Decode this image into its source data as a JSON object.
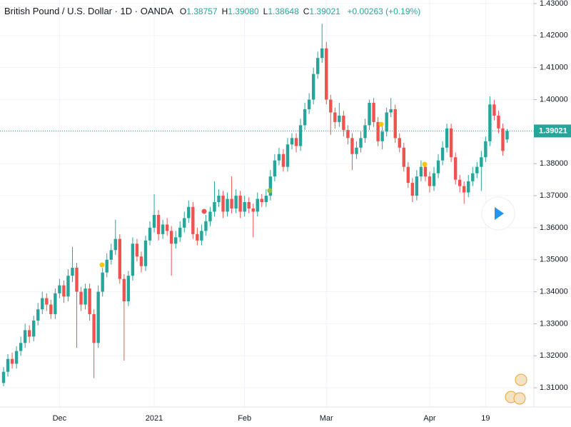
{
  "chart_data": {
    "type": "candlestick",
    "header": {
      "title": "British Pound / U.S. Dollar · 1D · OANDA",
      "ohlc": [
        {
          "key": "O",
          "value": "1.38757"
        },
        {
          "key": "H",
          "value": "1.39080"
        },
        {
          "key": "L",
          "value": "1.38648"
        },
        {
          "key": "C",
          "value": "1.39021"
        }
      ],
      "change": "+0.00263 (+0.19%)"
    },
    "categories": [
      null,
      null,
      null,
      null,
      null,
      null,
      null,
      null,
      null,
      null,
      null,
      null,
      null,
      "Dec",
      null,
      null,
      null,
      null,
      null,
      null,
      null,
      null,
      null,
      null,
      null,
      null,
      null,
      null,
      null,
      null,
      null,
      null,
      null,
      null,
      null,
      "2021",
      null,
      null,
      null,
      null,
      null,
      null,
      null,
      null,
      null,
      null,
      null,
      null,
      null,
      null,
      null,
      null,
      null,
      null,
      null,
      null,
      "Feb",
      null,
      null,
      null,
      null,
      null,
      null,
      null,
      null,
      null,
      null,
      null,
      null,
      null,
      null,
      null,
      null,
      null,
      null,
      "Mar",
      null,
      null,
      null,
      null,
      null,
      null,
      null,
      null,
      null,
      null,
      null,
      null,
      null,
      null,
      null,
      null,
      null,
      null,
      null,
      null,
      null,
      null,
      null,
      "Apr",
      null,
      null,
      null,
      null,
      null,
      null,
      null,
      null,
      null,
      null,
      null,
      null,
      "19",
      null,
      null,
      null,
      null,
      null
    ],
    "open": [
      1.3115,
      1.315,
      1.319,
      1.3175,
      1.3215,
      1.324,
      1.328,
      1.326,
      1.331,
      1.3345,
      1.338,
      1.336,
      1.333,
      1.3395,
      1.342,
      1.3385,
      1.345,
      1.3475,
      1.34,
      1.336,
      1.341,
      1.333,
      1.324,
      1.34,
      1.346,
      1.35,
      1.353,
      1.3565,
      1.344,
      1.337,
      1.345,
      1.355,
      1.351,
      1.348,
      1.356,
      1.36,
      1.364,
      1.358,
      1.361,
      1.359,
      1.355,
      1.357,
      1.36,
      1.363,
      1.3665,
      1.358,
      1.356,
      1.359,
      1.362,
      1.365,
      1.368,
      1.37,
      1.365,
      1.369,
      1.366,
      1.37,
      1.365,
      1.368,
      1.366,
      1.365,
      1.369,
      1.368,
      1.37,
      1.376,
      1.381,
      1.383,
      1.379,
      1.386,
      1.388,
      1.3855,
      1.392,
      1.397,
      1.4,
      1.408,
      1.413,
      1.416,
      1.4,
      1.396,
      1.393,
      1.395,
      1.3905,
      1.388,
      1.383,
      1.385,
      1.388,
      1.392,
      1.399,
      1.393,
      1.387,
      1.39,
      1.396,
      1.397,
      1.388,
      1.385,
      1.379,
      1.374,
      1.37,
      1.376,
      1.379,
      1.376,
      1.373,
      1.377,
      1.381,
      1.385,
      1.391,
      1.382,
      1.375,
      1.373,
      1.371,
      1.3745,
      1.377,
      1.379,
      1.382,
      1.387,
      1.3985,
      1.395,
      1.391,
      1.38757
    ],
    "high": [
      1.3165,
      1.3205,
      1.321,
      1.323,
      1.326,
      1.33,
      1.3295,
      1.3325,
      1.3365,
      1.34,
      1.3395,
      1.3375,
      1.341,
      1.344,
      1.3435,
      1.347,
      1.354,
      1.349,
      1.3415,
      1.3425,
      1.3425,
      1.3345,
      1.342,
      1.3475,
      1.352,
      1.355,
      1.3625,
      1.358,
      1.3455,
      1.3465,
      1.357,
      1.3565,
      1.3525,
      1.3575,
      1.362,
      1.3705,
      1.3655,
      1.3625,
      1.363,
      1.3605,
      1.359,
      1.362,
      1.365,
      1.3685,
      1.368,
      1.36,
      1.361,
      1.364,
      1.3665,
      1.3745,
      1.372,
      1.3715,
      1.371,
      1.376,
      1.372,
      1.3715,
      1.37,
      1.3695,
      1.3675,
      1.371,
      1.3705,
      1.372,
      1.378,
      1.383,
      1.385,
      1.3845,
      1.388,
      1.3895,
      1.3895,
      1.394,
      1.399,
      1.402,
      1.41,
      1.415,
      1.4237,
      1.418,
      1.4015,
      1.3975,
      1.399,
      1.3965,
      1.392,
      1.3895,
      1.387,
      1.39,
      1.394,
      1.4,
      1.4005,
      1.3945,
      1.392,
      1.3975,
      1.4005,
      1.3985,
      1.3895,
      1.3865,
      1.3805,
      1.3755,
      1.378,
      1.381,
      1.3805,
      1.3775,
      1.379,
      1.383,
      1.387,
      1.3925,
      1.3925,
      1.3835,
      1.3765,
      1.3745,
      1.3765,
      1.379,
      1.3805,
      1.384,
      1.3885,
      1.401,
      1.4,
      1.3965,
      1.3925,
      1.3908
    ],
    "low": [
      1.3105,
      1.3135,
      1.316,
      1.316,
      1.32,
      1.3225,
      1.324,
      1.3245,
      1.3295,
      1.333,
      1.334,
      1.3315,
      1.3315,
      1.338,
      1.3365,
      1.337,
      1.343,
      1.3225,
      1.334,
      1.3345,
      1.331,
      1.313,
      1.3225,
      1.3385,
      1.3445,
      1.3485,
      1.3515,
      1.3425,
      1.3185,
      1.3355,
      1.3435,
      1.3495,
      1.346,
      1.3465,
      1.3545,
      1.3585,
      1.356,
      1.3565,
      1.3575,
      1.345,
      1.3535,
      1.3555,
      1.3585,
      1.3615,
      1.3565,
      1.3545,
      1.3545,
      1.3575,
      1.3605,
      1.3635,
      1.3665,
      1.363,
      1.3635,
      1.3645,
      1.3645,
      1.363,
      1.3635,
      1.3645,
      1.357,
      1.3635,
      1.3665,
      1.3665,
      1.3685,
      1.3745,
      1.3795,
      1.3775,
      1.3775,
      1.3845,
      1.3835,
      1.384,
      1.3905,
      1.3955,
      1.3985,
      1.4065,
      1.4115,
      1.3985,
      1.389,
      1.391,
      1.3915,
      1.3885,
      1.386,
      1.378,
      1.3815,
      1.3835,
      1.3865,
      1.3905,
      1.3915,
      1.3855,
      1.3845,
      1.3885,
      1.3945,
      1.3865,
      1.3835,
      1.3775,
      1.3725,
      1.368,
      1.3685,
      1.3745,
      1.3745,
      1.371,
      1.3715,
      1.3755,
      1.3795,
      1.3835,
      1.3805,
      1.3735,
      1.371,
      1.3675,
      1.3695,
      1.373,
      1.3755,
      1.3715,
      1.3805,
      1.3855,
      1.3935,
      1.3895,
      1.3825,
      1.38648
    ],
    "close": [
      1.315,
      1.319,
      1.3175,
      1.3215,
      1.324,
      1.328,
      1.326,
      1.331,
      1.3345,
      1.338,
      1.336,
      1.333,
      1.3395,
      1.342,
      1.3385,
      1.345,
      1.3475,
      1.34,
      1.336,
      1.341,
      1.333,
      1.324,
      1.34,
      1.346,
      1.35,
      1.353,
      1.3565,
      1.344,
      1.337,
      1.345,
      1.355,
      1.351,
      1.348,
      1.356,
      1.36,
      1.364,
      1.358,
      1.361,
      1.359,
      1.355,
      1.357,
      1.36,
      1.363,
      1.3665,
      1.358,
      1.356,
      1.359,
      1.362,
      1.365,
      1.368,
      1.37,
      1.365,
      1.369,
      1.366,
      1.37,
      1.365,
      1.368,
      1.366,
      1.365,
      1.369,
      1.368,
      1.37,
      1.376,
      1.381,
      1.383,
      1.379,
      1.386,
      1.388,
      1.3855,
      1.392,
      1.397,
      1.4,
      1.408,
      1.413,
      1.416,
      1.4,
      1.396,
      1.393,
      1.395,
      1.3905,
      1.388,
      1.383,
      1.385,
      1.388,
      1.392,
      1.399,
      1.393,
      1.387,
      1.39,
      1.396,
      1.397,
      1.388,
      1.385,
      1.379,
      1.374,
      1.37,
      1.376,
      1.379,
      1.376,
      1.373,
      1.377,
      1.381,
      1.385,
      1.391,
      1.382,
      1.375,
      1.373,
      1.371,
      1.3745,
      1.377,
      1.379,
      1.382,
      1.387,
      1.3985,
      1.395,
      1.391,
      1.384,
      1.39021
    ],
    "up_color": "#26a69a",
    "down_color": "#ef5350",
    "ylim": [
      1.304,
      1.43
    ],
    "yticks": [
      {
        "value": 1.31,
        "label": "1.31000"
      },
      {
        "value": 1.32,
        "label": "1.32000"
      },
      {
        "value": 1.33,
        "label": "1.33000"
      },
      {
        "value": 1.34,
        "label": "1.34000"
      },
      {
        "value": 1.35,
        "label": "1.35000"
      },
      {
        "value": 1.36,
        "label": "1.36000"
      },
      {
        "value": 1.37,
        "label": "1.37000"
      },
      {
        "value": 1.38,
        "label": "1.38000"
      },
      {
        "value": 1.39,
        "label": "1.39000"
      },
      {
        "value": 1.4,
        "label": "1.40000"
      },
      {
        "value": 1.41,
        "label": "1.41000"
      },
      {
        "value": 1.42,
        "label": "1.42000"
      },
      {
        "value": 1.43,
        "label": "1.43000"
      }
    ],
    "grid": true
  }
}
